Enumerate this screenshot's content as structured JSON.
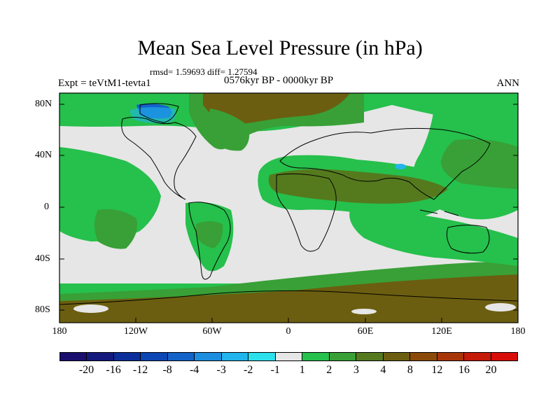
{
  "title": "Mean Sea Level Pressure (in hPa)",
  "stats": "rmsd= 1.59693 diff= 1.27594",
  "period": "0576kyr BP - 0000kyr BP",
  "expt": "Expt = teVtM1-tevta1",
  "season": "ANN",
  "lat_labels": [
    "80N",
    "40N",
    "0",
    "40S",
    "80S"
  ],
  "lon_labels": [
    "180",
    "120W",
    "60W",
    "0",
    "60E",
    "120E",
    "180"
  ],
  "colorbar": {
    "labels": [
      "-20",
      "-16",
      "-12",
      "-8",
      "-4",
      "-3",
      "-2",
      "-1",
      "1",
      "2",
      "3",
      "4",
      "8",
      "12",
      "16",
      "20"
    ],
    "colors": [
      "#1a0f6e",
      "#14197d",
      "#0c2e9a",
      "#0c46b4",
      "#1463c8",
      "#1c8ee0",
      "#22b4ec",
      "#2ce0ec",
      "#e6e6e6",
      "#26c04c",
      "#38a036",
      "#557a1e",
      "#6b5e10",
      "#8c4a0a",
      "#a83508",
      "#c41a08",
      "#d80c08"
    ]
  },
  "colors": {
    "neutral": "#e6e6e6",
    "green": "#26c04c",
    "olive": "#38a036",
    "brown": "#6b5e10",
    "dark_olive": "#557a1e",
    "light_blue": "#22b4ec",
    "blue": "#1463c8"
  }
}
